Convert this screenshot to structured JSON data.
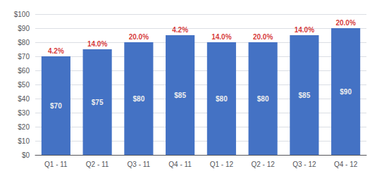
{
  "chart_data": {
    "type": "bar",
    "categories": [
      "Q1 - 11",
      "Q2 - 11",
      "Q3 - 11",
      "Q4 - 11",
      "Q1 - 12",
      "Q2 - 12",
      "Q3 - 12",
      "Q4 - 12"
    ],
    "values": [
      70,
      75,
      80,
      85,
      80,
      80,
      85,
      90
    ],
    "value_labels": [
      "$70",
      "$75",
      "$80",
      "$85",
      "$80",
      "$80",
      "$85",
      "$90"
    ],
    "data_labels": true,
    "color": "#4472C4",
    "annotations": [
      {
        "x": "Q1 - 11",
        "text": "4.2%",
        "color": "#CC0000"
      },
      {
        "x": "Q2 - 11",
        "text": "14.0%",
        "color": "#CC0000"
      },
      {
        "x": "Q3 - 11",
        "text": "20.0%",
        "color": "#CC0000"
      },
      {
        "x": "Q4 - 11",
        "text": "4.2%",
        "color": "#CC0000"
      },
      {
        "x": "Q1 - 12",
        "text": "14.0%",
        "color": "#CC0000"
      },
      {
        "x": "Q2 - 12",
        "text": "20.0%",
        "color": "#CC0000"
      },
      {
        "x": "Q3 - 12",
        "text": "14.0%",
        "color": "#CC0000"
      },
      {
        "x": "Q4 - 12",
        "text": "20.0%",
        "color": "#CC0000"
      }
    ],
    "ylim": [
      0,
      100
    ],
    "yticks": [
      {
        "value": 0,
        "label": "$0"
      },
      {
        "value": 10,
        "label": "$10"
      },
      {
        "value": 20,
        "label": "$20"
      },
      {
        "value": 30,
        "label": "$30"
      },
      {
        "value": 40,
        "label": "$40"
      },
      {
        "value": 50,
        "label": "$50"
      },
      {
        "value": 60,
        "label": "$60"
      },
      {
        "value": 70,
        "label": "$70"
      },
      {
        "value": 80,
        "label": "$80"
      },
      {
        "value": 90,
        "label": "$90"
      },
      {
        "value": 100,
        "label": "$100"
      }
    ],
    "grid": true
  }
}
